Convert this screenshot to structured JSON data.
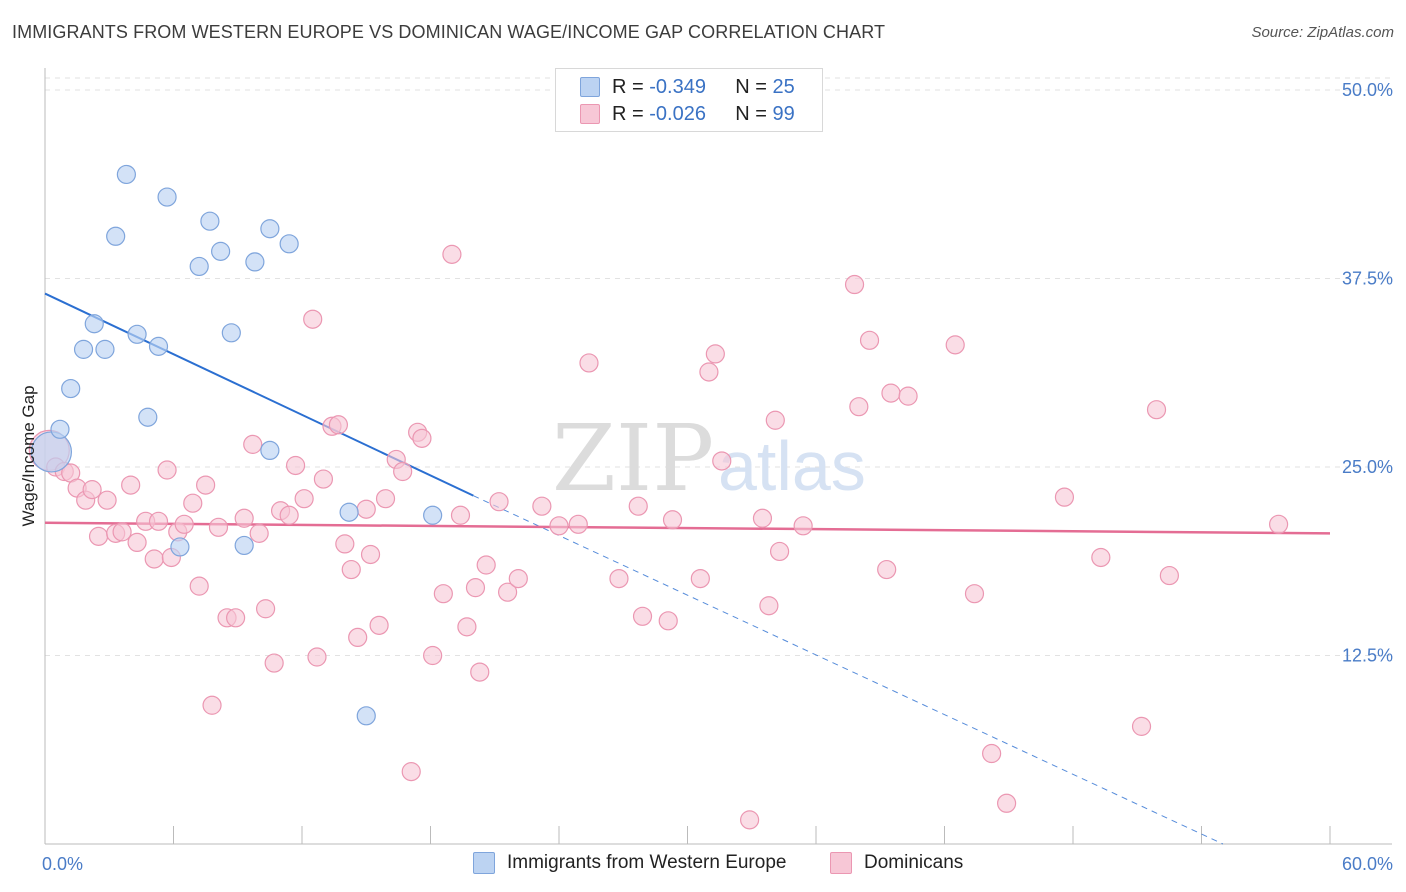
{
  "header": {
    "title": "IMMIGRANTS FROM WESTERN EUROPE VS DOMINICAN WAGE/INCOME GAP CORRELATION CHART",
    "source": "Source: ZipAtlas.com"
  },
  "watermark": {
    "part1": "ZIP",
    "part2": "atlas"
  },
  "legend": {
    "series1": {
      "r_label": "R = ",
      "r_value": "-0.349",
      "n_label": "N = ",
      "n_value": "25"
    },
    "series2": {
      "r_label": "R = ",
      "r_value": "-0.026",
      "n_label": "N = ",
      "n_value": "99"
    }
  },
  "colors": {
    "blue_fill": "#bcd3f2",
    "blue_stroke": "#7fa5dc",
    "blue_line": "#2b6fd1",
    "pink_fill": "#f7c7d6",
    "pink_stroke": "#eb97b2",
    "pink_line": "#e46d94"
  },
  "chart_data": {
    "type": "scatter",
    "title": "IMMIGRANTS FROM WESTERN EUROPE VS DOMINICAN WAGE/INCOME GAP CORRELATION CHART",
    "xlabel": "",
    "ylabel": "Wage/Income Gap",
    "xlim": [
      0,
      60
    ],
    "ylim": [
      0,
      50
    ],
    "x_tick_labels": [
      "0.0%",
      "60.0%"
    ],
    "y_ticks": [
      12.5,
      25.0,
      37.5,
      50.0
    ],
    "y_tick_labels": [
      "12.5%",
      "25.0%",
      "37.5%",
      "50.0%"
    ],
    "grid": true,
    "legend_position": "top-center",
    "series": [
      {
        "name": "Immigrants from Western Europe",
        "r": -0.349,
        "n": 25,
        "trend": {
          "x0": 0,
          "y0": 36.5,
          "x1": 20,
          "y1": 23.1,
          "dashed_to_x": 55,
          "dashed_to_y": 0
        },
        "points": [
          {
            "x": 0.3,
            "y": 26.0,
            "big": true
          },
          {
            "x": 0.7,
            "y": 27.5
          },
          {
            "x": 1.2,
            "y": 30.2
          },
          {
            "x": 1.8,
            "y": 32.8
          },
          {
            "x": 2.3,
            "y": 34.5
          },
          {
            "x": 2.8,
            "y": 32.8
          },
          {
            "x": 3.3,
            "y": 40.3
          },
          {
            "x": 3.8,
            "y": 44.4
          },
          {
            "x": 4.3,
            "y": 33.8
          },
          {
            "x": 4.8,
            "y": 28.3
          },
          {
            "x": 5.3,
            "y": 33.0
          },
          {
            "x": 5.7,
            "y": 42.9
          },
          {
            "x": 6.3,
            "y": 19.7
          },
          {
            "x": 7.2,
            "y": 38.3
          },
          {
            "x": 7.7,
            "y": 41.3
          },
          {
            "x": 8.2,
            "y": 39.3
          },
          {
            "x": 8.7,
            "y": 33.9
          },
          {
            "x": 9.3,
            "y": 19.8
          },
          {
            "x": 9.8,
            "y": 38.6
          },
          {
            "x": 10.5,
            "y": 26.1
          },
          {
            "x": 10.5,
            "y": 40.8
          },
          {
            "x": 11.4,
            "y": 39.8
          },
          {
            "x": 14.2,
            "y": 22.0
          },
          {
            "x": 15.0,
            "y": 8.5
          },
          {
            "x": 18.1,
            "y": 21.8
          }
        ]
      },
      {
        "name": "Dominicans",
        "r": -0.026,
        "n": 99,
        "trend": {
          "x0": 0,
          "y0": 21.3,
          "x1": 60,
          "y1": 20.6
        },
        "points": [
          {
            "x": 0.2,
            "y": 26.1,
            "big": true
          },
          {
            "x": 0.5,
            "y": 25.0
          },
          {
            "x": 0.9,
            "y": 24.7
          },
          {
            "x": 1.2,
            "y": 24.6
          },
          {
            "x": 1.5,
            "y": 23.6
          },
          {
            "x": 1.9,
            "y": 22.8
          },
          {
            "x": 2.2,
            "y": 23.5
          },
          {
            "x": 2.5,
            "y": 20.4
          },
          {
            "x": 2.9,
            "y": 22.8
          },
          {
            "x": 3.3,
            "y": 20.6
          },
          {
            "x": 3.6,
            "y": 20.7
          },
          {
            "x": 4.0,
            "y": 23.8
          },
          {
            "x": 4.3,
            "y": 20.0
          },
          {
            "x": 4.7,
            "y": 21.4
          },
          {
            "x": 5.1,
            "y": 18.9
          },
          {
            "x": 5.3,
            "y": 21.4
          },
          {
            "x": 5.7,
            "y": 24.8
          },
          {
            "x": 5.9,
            "y": 19.0
          },
          {
            "x": 6.2,
            "y": 20.7
          },
          {
            "x": 6.5,
            "y": 21.2
          },
          {
            "x": 6.9,
            "y": 22.6
          },
          {
            "x": 7.2,
            "y": 17.1
          },
          {
            "x": 7.5,
            "y": 23.8
          },
          {
            "x": 7.8,
            "y": 9.2
          },
          {
            "x": 8.1,
            "y": 21.0
          },
          {
            "x": 8.5,
            "y": 15.0
          },
          {
            "x": 8.9,
            "y": 15.0
          },
          {
            "x": 9.3,
            "y": 21.6
          },
          {
            "x": 9.7,
            "y": 26.5
          },
          {
            "x": 10.0,
            "y": 20.6
          },
          {
            "x": 10.3,
            "y": 15.6
          },
          {
            "x": 10.7,
            "y": 12.0
          },
          {
            "x": 11.0,
            "y": 22.1
          },
          {
            "x": 11.4,
            "y": 21.8
          },
          {
            "x": 11.7,
            "y": 25.1
          },
          {
            "x": 12.1,
            "y": 22.9
          },
          {
            "x": 12.5,
            "y": 34.8
          },
          {
            "x": 12.7,
            "y": 12.4
          },
          {
            "x": 13.0,
            "y": 24.2
          },
          {
            "x": 13.4,
            "y": 27.7
          },
          {
            "x": 13.7,
            "y": 27.8
          },
          {
            "x": 14.0,
            "y": 19.9
          },
          {
            "x": 14.3,
            "y": 18.2
          },
          {
            "x": 14.6,
            "y": 13.7
          },
          {
            "x": 15.0,
            "y": 22.2
          },
          {
            "x": 15.2,
            "y": 19.2
          },
          {
            "x": 15.6,
            "y": 14.5
          },
          {
            "x": 15.9,
            "y": 22.9
          },
          {
            "x": 16.4,
            "y": 25.5
          },
          {
            "x": 16.7,
            "y": 24.7
          },
          {
            "x": 17.1,
            "y": 4.8
          },
          {
            "x": 17.4,
            "y": 27.3
          },
          {
            "x": 17.6,
            "y": 26.9
          },
          {
            "x": 18.1,
            "y": 12.5
          },
          {
            "x": 18.6,
            "y": 16.6
          },
          {
            "x": 19.0,
            "y": 39.1
          },
          {
            "x": 19.4,
            "y": 21.8
          },
          {
            "x": 19.7,
            "y": 14.4
          },
          {
            "x": 20.1,
            "y": 17.0
          },
          {
            "x": 20.3,
            "y": 11.4
          },
          {
            "x": 20.6,
            "y": 18.5
          },
          {
            "x": 21.2,
            "y": 22.7
          },
          {
            "x": 21.6,
            "y": 16.7
          },
          {
            "x": 22.1,
            "y": 17.6
          },
          {
            "x": 23.2,
            "y": 22.4
          },
          {
            "x": 24.0,
            "y": 21.1
          },
          {
            "x": 24.9,
            "y": 21.2
          },
          {
            "x": 25.4,
            "y": 31.9
          },
          {
            "x": 26.8,
            "y": 17.6
          },
          {
            "x": 27.9,
            "y": 15.1
          },
          {
            "x": 27.7,
            "y": 22.4
          },
          {
            "x": 29.1,
            "y": 14.8
          },
          {
            "x": 29.3,
            "y": 21.5
          },
          {
            "x": 30.6,
            "y": 17.6
          },
          {
            "x": 31.0,
            "y": 31.3
          },
          {
            "x": 31.3,
            "y": 32.5
          },
          {
            "x": 31.6,
            "y": 25.4
          },
          {
            "x": 32.9,
            "y": 1.6
          },
          {
            "x": 33.5,
            "y": 21.6
          },
          {
            "x": 33.8,
            "y": 15.8
          },
          {
            "x": 34.1,
            "y": 28.1
          },
          {
            "x": 34.3,
            "y": 19.4
          },
          {
            "x": 35.4,
            "y": 21.1
          },
          {
            "x": 37.8,
            "y": 37.1
          },
          {
            "x": 38.0,
            "y": 29.0
          },
          {
            "x": 38.5,
            "y": 33.4
          },
          {
            "x": 39.3,
            "y": 18.2
          },
          {
            "x": 39.5,
            "y": 29.9
          },
          {
            "x": 40.3,
            "y": 29.7
          },
          {
            "x": 42.5,
            "y": 33.1
          },
          {
            "x": 43.4,
            "y": 16.6
          },
          {
            "x": 44.2,
            "y": 6.0
          },
          {
            "x": 44.9,
            "y": 2.7
          },
          {
            "x": 47.6,
            "y": 23.0
          },
          {
            "x": 49.3,
            "y": 19.0
          },
          {
            "x": 51.2,
            "y": 7.8
          },
          {
            "x": 51.9,
            "y": 28.8
          },
          {
            "x": 52.5,
            "y": 17.8
          },
          {
            "x": 57.6,
            "y": 21.2
          }
        ]
      }
    ]
  },
  "bottom_legend": {
    "series1_label": "Immigrants from Western Europe",
    "series2_label": "Dominicans"
  }
}
